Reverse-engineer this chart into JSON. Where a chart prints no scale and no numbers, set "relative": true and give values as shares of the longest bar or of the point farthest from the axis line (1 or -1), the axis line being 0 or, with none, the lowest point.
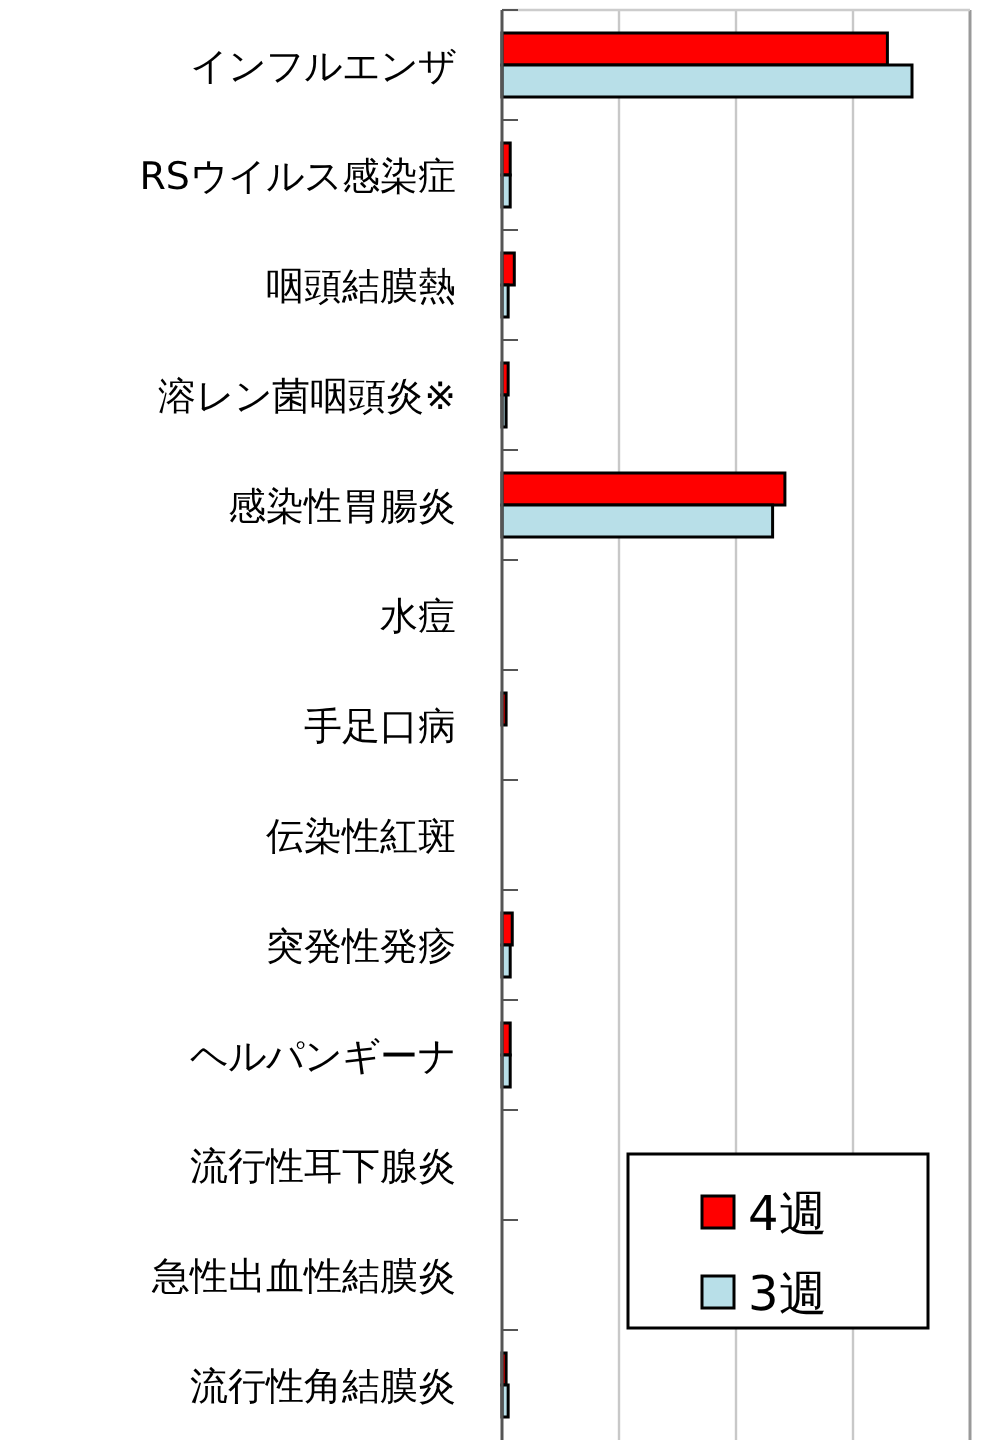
{
  "chart_data": {
    "type": "bar",
    "orientation": "horizontal",
    "relative": true,
    "grid": "x",
    "legend": "bottom right",
    "categories": [
      "インフルエンザ",
      "RSウイルス感染症",
      "咽頭結膜熱",
      "溶レン菌咽頭炎※",
      "感染性胃腸炎",
      "水痘",
      "手足口病",
      "伝染性紅斑",
      "突発性発疹",
      "ヘルパンギーナ",
      "流行性耳下腺炎",
      "急性出血性結膜炎",
      "流行性角結膜炎"
    ],
    "series": [
      {
        "name": "4週",
        "color": "#ff0000",
        "values": [
          0.94,
          0.02,
          0.03,
          0.015,
          0.69,
          null,
          0.01,
          0,
          0.025,
          0.02,
          null,
          0,
          0.01
        ]
      },
      {
        "name": "3週",
        "color": "#b8dfe8",
        "values": [
          1,
          0.02,
          0.015,
          0.01,
          0.66,
          null,
          null,
          0,
          0.02,
          0.02,
          null,
          0,
          0.015
        ]
      }
    ]
  }
}
